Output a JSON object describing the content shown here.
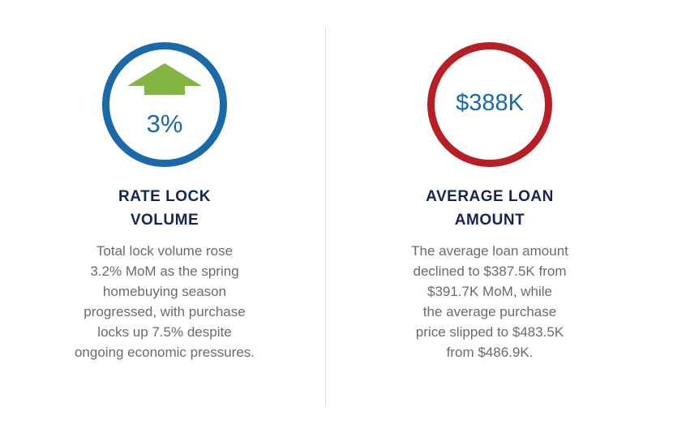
{
  "colors": {
    "blue": "#1a6aab",
    "red": "#b81f25",
    "green": "#82b541",
    "navy": "#1b2450",
    "gray": "#6b6b6b"
  },
  "stats": [
    {
      "value": "3%",
      "icon": "arrow-up-icon",
      "heading_lines": [
        "RATE LOCK",
        "VOLUME"
      ],
      "body_lines": [
        "Total lock volume rose",
        "3.2% MoM as the spring",
        "homebuying season",
        "progressed, with purchase",
        "locks up 7.5% despite",
        "ongoing economic pressures."
      ]
    },
    {
      "value": "$388K",
      "heading_lines": [
        "AVERAGE LOAN",
        "AMOUNT"
      ],
      "body_lines": [
        "The average loan amount",
        "declined to $387.5K from",
        "$391.7K MoM, while",
        "the average purchase",
        "price slipped to $483.5K",
        "from $486.9K."
      ]
    }
  ]
}
